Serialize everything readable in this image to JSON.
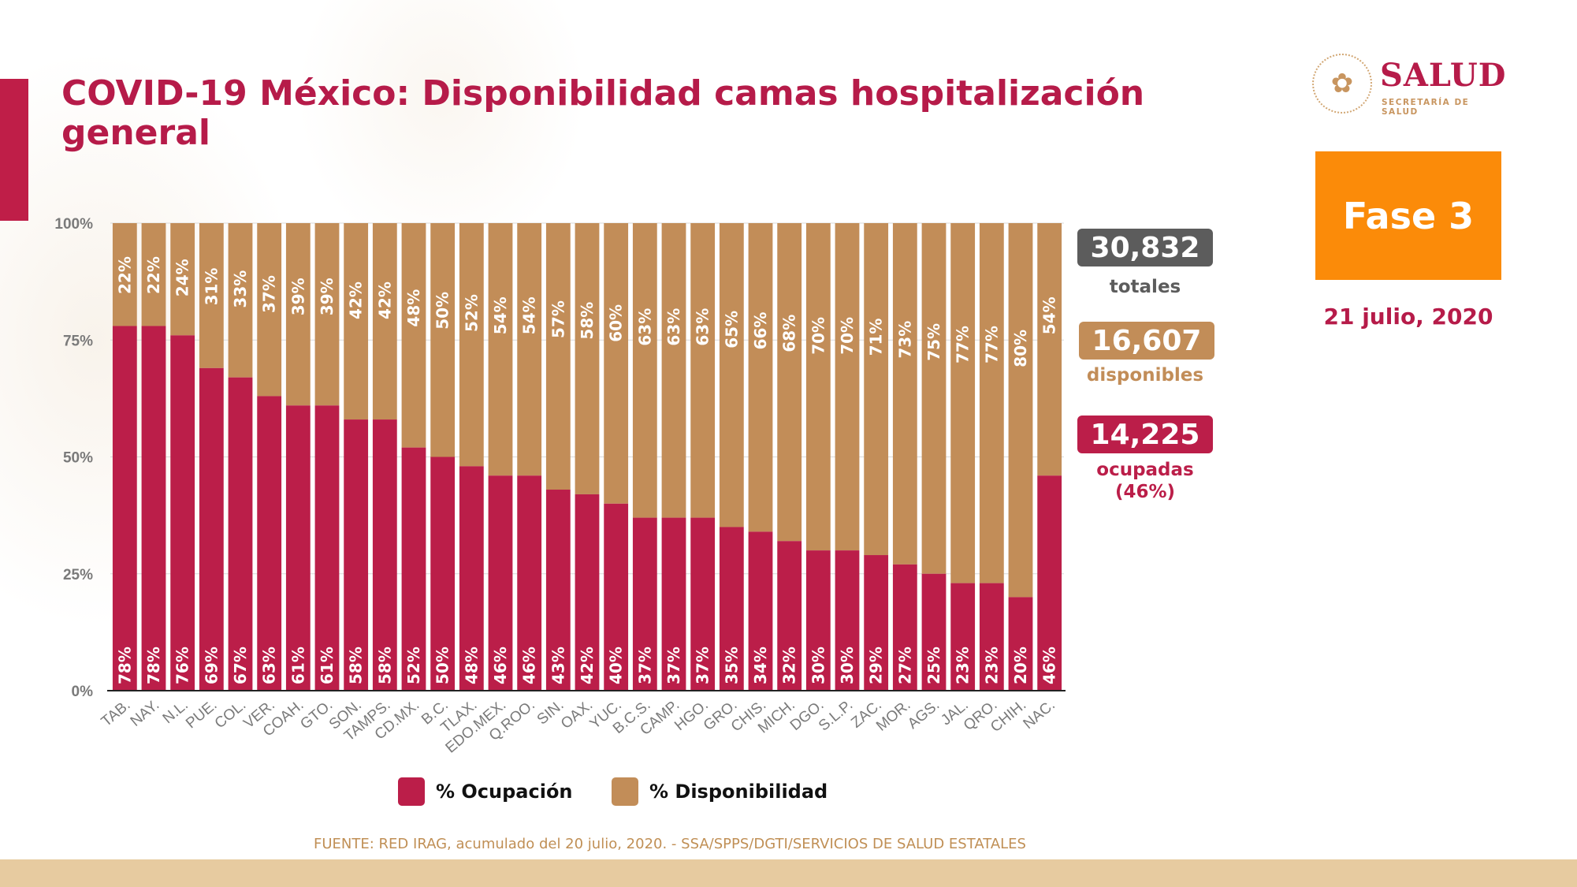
{
  "header": {
    "title": "COVID-19 México: Disponibilidad camas hospitalización general"
  },
  "logo": {
    "brand": "SALUD",
    "subtitle": "SECRETARÍA DE SALUD",
    "seal_icon": "mexican-coat-of-arms"
  },
  "phase": {
    "label": "Fase 3",
    "color": "#fb8b09"
  },
  "date": "21 julio, 2020",
  "summary": {
    "total": {
      "value": "30,832",
      "label": "totales",
      "color": "#5c5c5c"
    },
    "available": {
      "value": "16,607",
      "label": "disponibles",
      "color": "#c28d58"
    },
    "occupied": {
      "value": "14,225",
      "label": "ocupadas",
      "pct": "(46%)",
      "color": "#bb1e49"
    }
  },
  "legend": {
    "occupation": "% Ocupación",
    "availability": "% Disponibilidad"
  },
  "source": "FUENTE: RED IRAG, acumulado del 20 julio, 2020. -  SSA/SPPS/DGTI/SERVICIOS DE SALUD ESTATALES",
  "colors": {
    "occupation": "#bb1e49",
    "availability": "#c28d58",
    "accent": "#b61b49"
  },
  "chart_data": {
    "type": "bar",
    "stacked": true,
    "title": "COVID-19 México: Disponibilidad camas hospitalización general",
    "xlabel": "",
    "ylabel": "",
    "ylim": [
      0,
      100
    ],
    "yticks": [
      "0%",
      "25%",
      "50%",
      "75%",
      "100%"
    ],
    "grid": true,
    "legend_position": "bottom",
    "categories": [
      "TAB.",
      "NAY.",
      "N.L.",
      "PUE.",
      "COL.",
      "VER.",
      "COAH.",
      "GTO.",
      "SON.",
      "TAMPS.",
      "CD.MX.",
      "B.C.",
      "TLAX.",
      "EDO.MEX.",
      "Q.ROO.",
      "SIN.",
      "OAX.",
      "YUC.",
      "B.C.S.",
      "CAMP.",
      "HGO.",
      "GRO.",
      "CHIS.",
      "MICH.",
      "DGO.",
      "S.L.P.",
      "ZAC.",
      "MOR.",
      "AGS.",
      "JAL.",
      "QRO.",
      "CHIH.",
      "NAC."
    ],
    "series": [
      {
        "name": "% Ocupación",
        "values": [
          78,
          78,
          76,
          69,
          67,
          63,
          61,
          61,
          58,
          58,
          52,
          50,
          48,
          46,
          46,
          43,
          42,
          40,
          37,
          37,
          37,
          35,
          34,
          32,
          30,
          30,
          29,
          27,
          25,
          23,
          23,
          20,
          46
        ]
      },
      {
        "name": "% Disponibilidad",
        "values": [
          22,
          22,
          24,
          31,
          33,
          37,
          39,
          39,
          42,
          42,
          48,
          50,
          52,
          54,
          54,
          57,
          58,
          60,
          63,
          63,
          63,
          65,
          66,
          68,
          70,
          70,
          71,
          73,
          75,
          77,
          77,
          80,
          54
        ]
      }
    ]
  }
}
